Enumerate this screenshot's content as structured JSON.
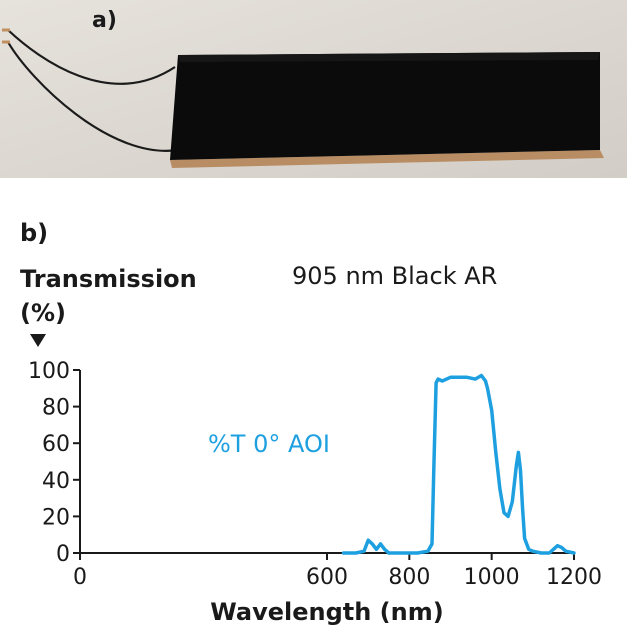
{
  "panel_a": {
    "label": "a)"
  },
  "panel_b": {
    "label": "b)"
  },
  "chart_data": {
    "type": "line",
    "title": "905 nm Black AR",
    "ylabel_line1": "Transmission",
    "ylabel_line2": "(%)",
    "xlabel": "Wavelength (nm)",
    "xlim": [
      0,
      1200
    ],
    "ylim": [
      0,
      100
    ],
    "xticks": [
      0,
      600,
      800,
      1000,
      1200
    ],
    "yticks": [
      0,
      20,
      40,
      60,
      80,
      100
    ],
    "grid": false,
    "series": [
      {
        "name": "%T 0° AOI",
        "color": "#1ea0e0",
        "x": [
          640,
          670,
          690,
          700,
          710,
          720,
          730,
          740,
          750,
          760,
          820,
          845,
          855,
          860,
          865,
          870,
          880,
          900,
          920,
          940,
          960,
          975,
          985,
          990,
          1000,
          1010,
          1020,
          1030,
          1040,
          1050,
          1060,
          1065,
          1070,
          1075,
          1080,
          1090,
          1100,
          1120,
          1140,
          1160,
          1170,
          1180,
          1200
        ],
        "y": [
          0,
          0,
          1,
          7,
          5,
          2,
          5,
          2,
          0,
          0,
          0,
          1,
          5,
          50,
          93,
          95,
          94,
          96,
          96,
          96,
          95,
          97,
          94,
          90,
          78,
          55,
          35,
          22,
          20,
          28,
          48,
          55,
          45,
          25,
          8,
          2,
          1,
          0,
          0,
          4,
          3,
          1,
          0
        ]
      }
    ]
  }
}
